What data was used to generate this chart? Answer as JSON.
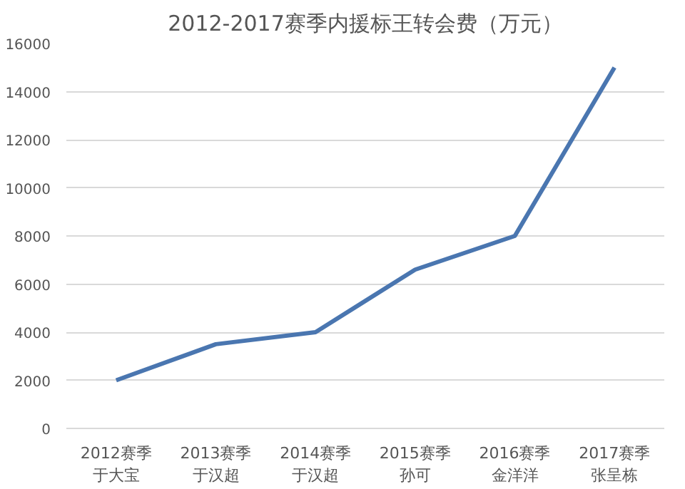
{
  "chart_data": {
    "type": "line",
    "title": "2012-2017赛季内援标王转会费（万元）",
    "categories": [
      "2012赛季于大宝",
      "2013赛季于汉超",
      "2014赛季于汉超",
      "2015赛季孙可",
      "2016赛季金洋洋",
      "2017赛季张呈栋"
    ],
    "series": [
      {
        "color": "#4a76b0",
        "values": [
          2000,
          3500,
          4000,
          6600,
          8000,
          15000
        ]
      }
    ],
    "ylim": [
      0,
      16000
    ],
    "yticks": [
      0,
      2000,
      4000,
      6000,
      8000,
      10000,
      12000,
      14000,
      16000
    ],
    "grid": "y",
    "marker": "none",
    "line_style": "solid"
  }
}
